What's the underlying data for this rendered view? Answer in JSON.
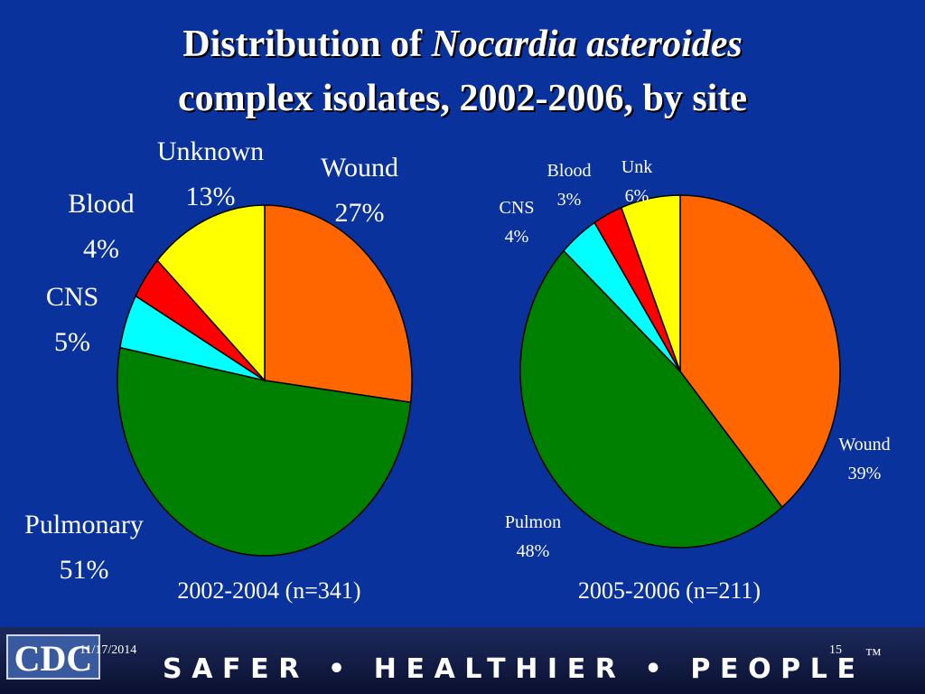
{
  "slide": {
    "title_parts": [
      "Distribution of ",
      "Nocardia asteroides",
      "complex isolates, 2002-2006, by site"
    ]
  },
  "chart_data": [
    {
      "type": "pie",
      "title": "2002-2004 (n=341)",
      "categories": [
        "Wound",
        "Pulmonary",
        "CNS",
        "Blood",
        "Unknown"
      ],
      "values": [
        27,
        51,
        5,
        4,
        13
      ],
      "value_labels": [
        "27%",
        "51%",
        "5%",
        "4%",
        "13%"
      ],
      "colors": [
        "#ff6600",
        "#008000",
        "#00ffff",
        "#ff0000",
        "#ffff00"
      ]
    },
    {
      "type": "pie",
      "title": "2005-2006 (n=211)",
      "categories": [
        "Wound",
        "Pulmon",
        "CNS",
        "Blood",
        "Unk"
      ],
      "values": [
        39,
        48,
        4,
        3,
        6
      ],
      "value_labels": [
        "39%",
        "48%",
        "4%",
        "3%",
        "6%"
      ],
      "colors": [
        "#ff6600",
        "#008000",
        "#00ffff",
        "#ff0000",
        "#ffff00"
      ]
    }
  ],
  "footer": {
    "date": "11/17/2014",
    "page": "15",
    "logo": "CDC",
    "tagline": "SAFER • HEALTHIER • PEOPLE",
    "trademark": "™"
  }
}
